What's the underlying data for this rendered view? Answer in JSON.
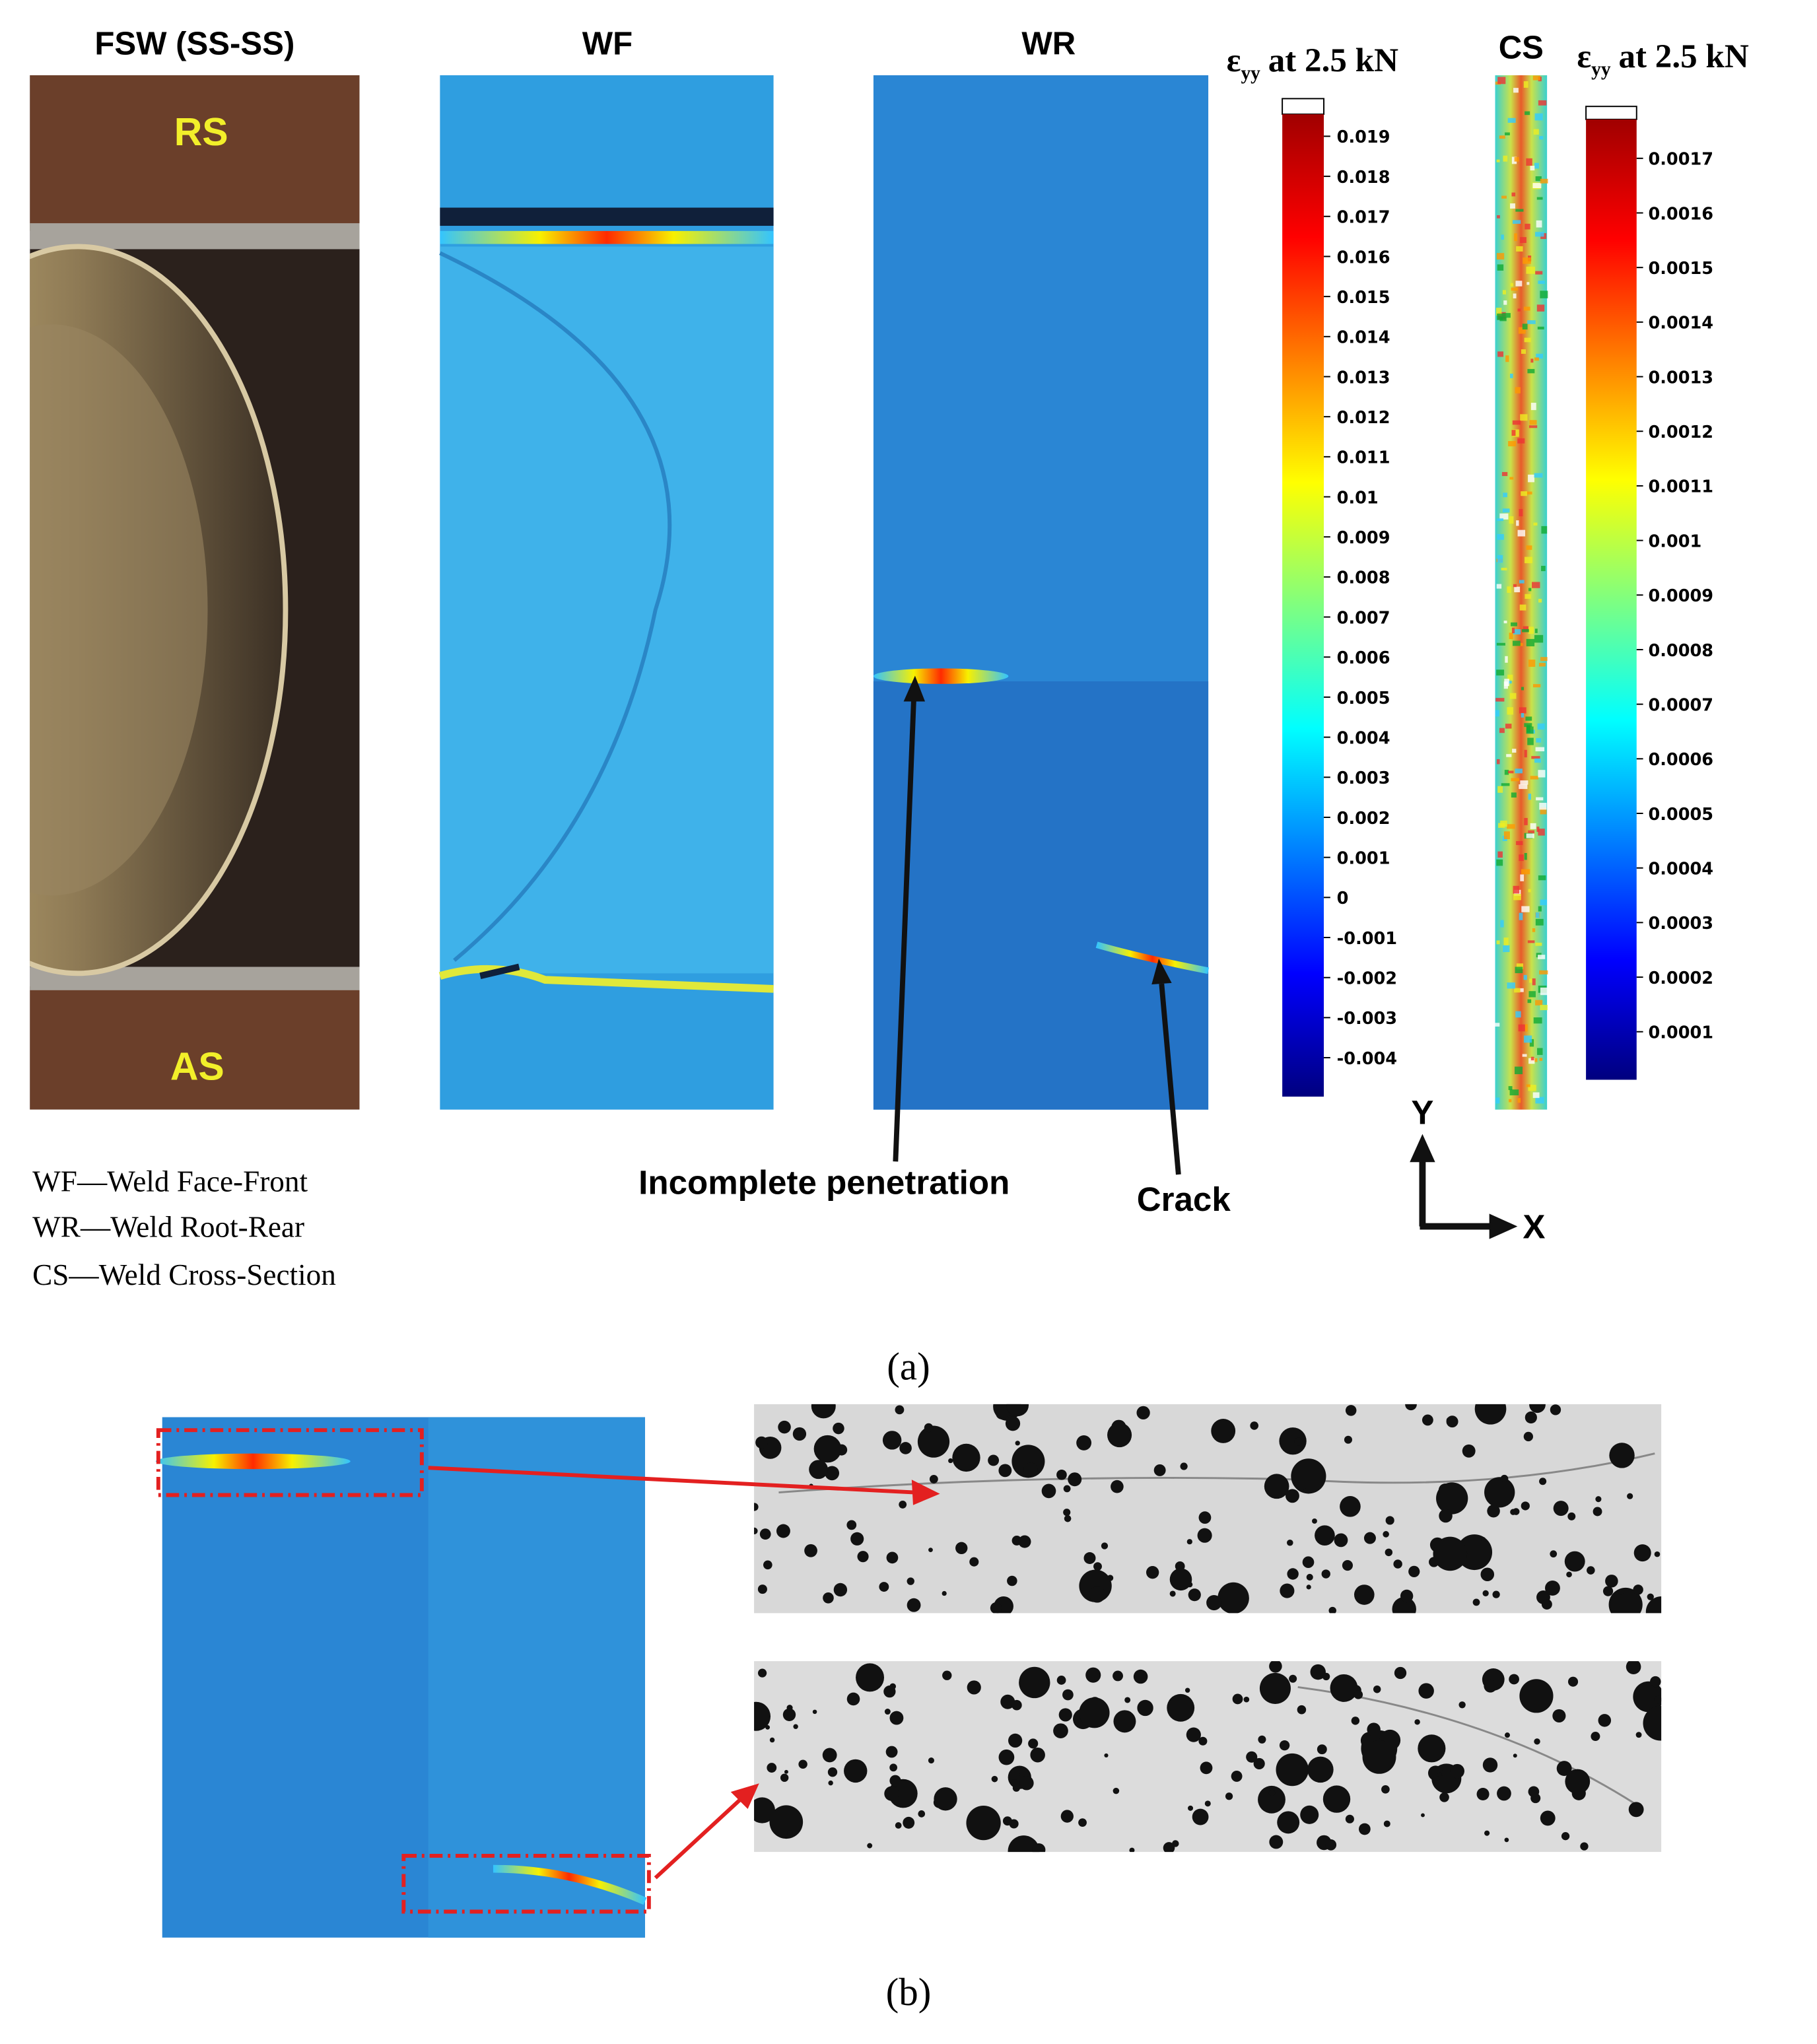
{
  "panel_a": {
    "titles": [
      "FSW (SS-SS)",
      "WF",
      "WR",
      "CS"
    ],
    "photo_labels": [
      "RS",
      "AS"
    ],
    "colorbar_1": {
      "symbol": "ε",
      "subscript": "yy",
      "text": "at 2.5 kN",
      "ticks": [
        0.019,
        0.018,
        0.017,
        0.016,
        0.015,
        0.014,
        0.013,
        0.012,
        0.011,
        0.01,
        0.009,
        0.008,
        0.007,
        0.006,
        0.005,
        0.004,
        0.003,
        0.002,
        0.001,
        0,
        -0.001,
        -0.002,
        -0.003,
        -0.004
      ]
    },
    "colorbar_2": {
      "symbol": "ε",
      "subscript": "yy",
      "text": "at 2.5 kN",
      "ticks": [
        0.0017,
        0.0016,
        0.0015,
        0.0014,
        0.0013,
        0.0012,
        0.0011,
        0.001,
        0.0009,
        0.0008,
        0.0007,
        0.0006,
        0.0005,
        0.0004,
        0.0003,
        0.0002,
        0.0001
      ]
    },
    "annotations": [
      "Incomplete penetration",
      "Crack"
    ],
    "axes": [
      "Y",
      "X"
    ],
    "legend": [
      "WF—Weld Face-Front",
      "WR—Weld Root-Rear",
      "CS—Weld Cross-Section"
    ],
    "caption": "(a)"
  },
  "panel_b": {
    "caption": "(b)"
  }
}
